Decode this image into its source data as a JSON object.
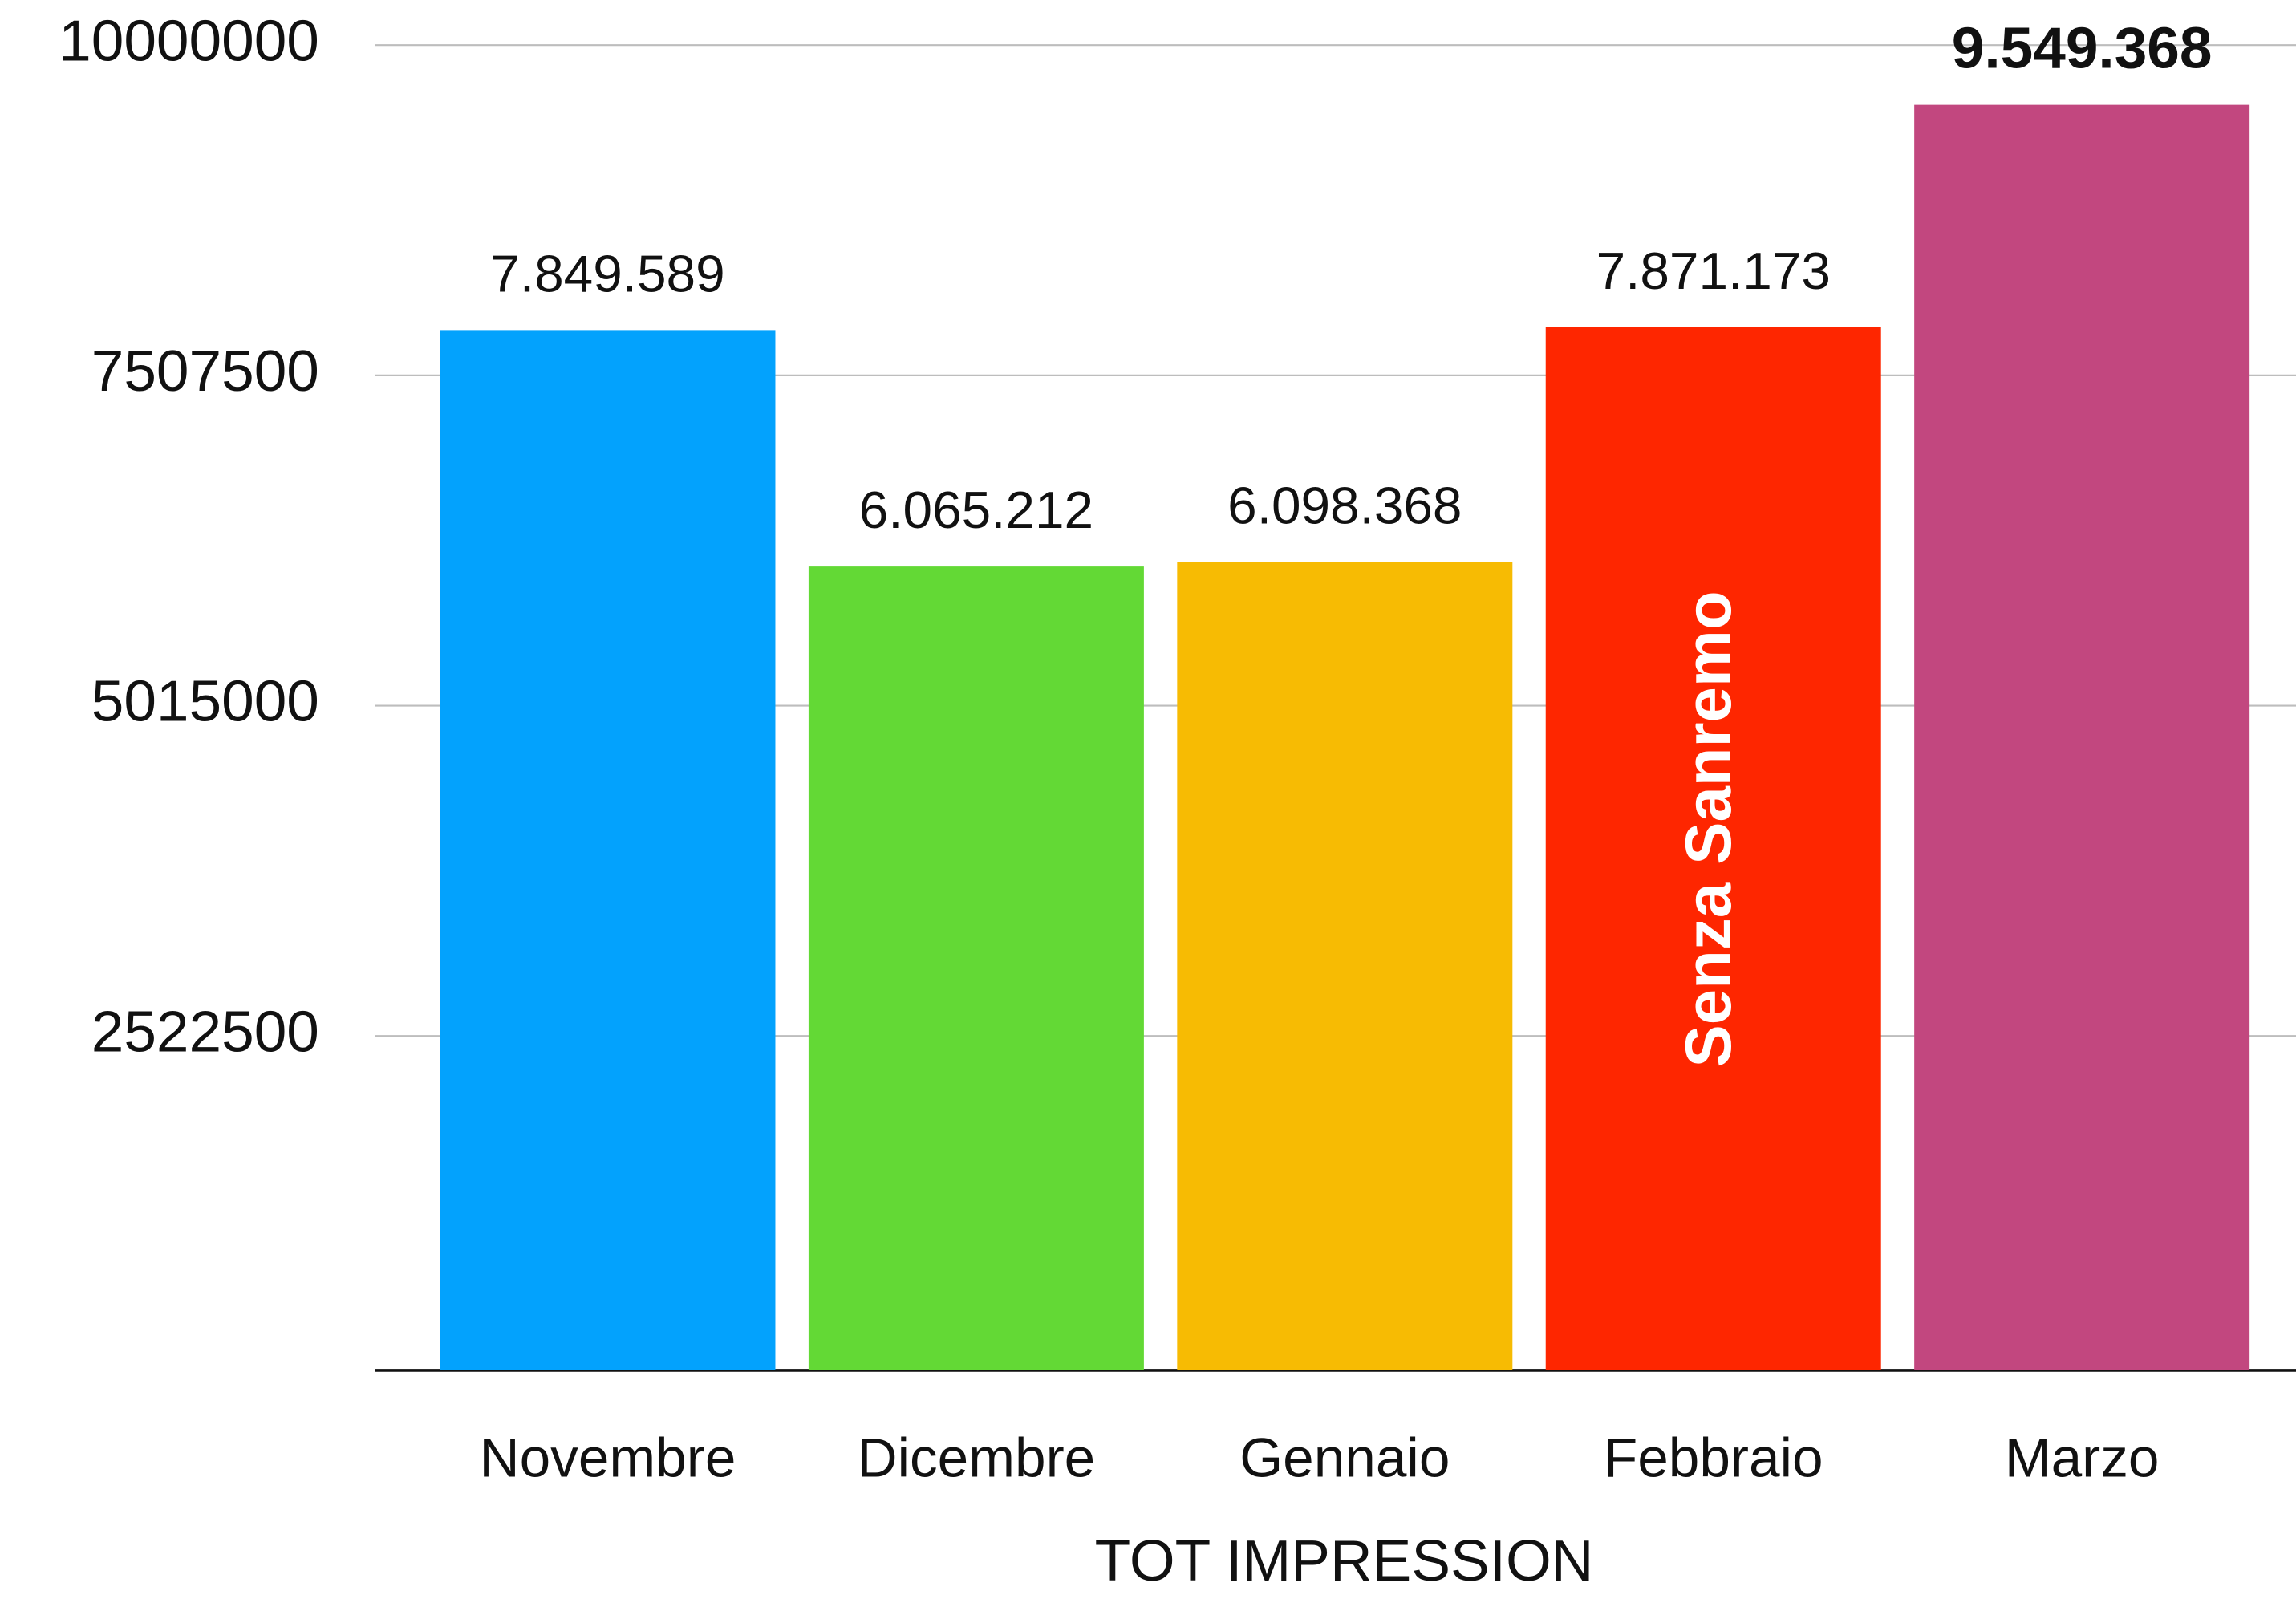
{
  "chart_data": {
    "type": "bar",
    "x_label": "TOT IMPRESSION",
    "categories": [
      "Novembre",
      "Dicembre",
      "Gennaio",
      "Febbraio",
      "Marzo"
    ],
    "values": [
      7849589,
      6065212,
      6098368,
      7871173,
      9549368
    ],
    "value_labels": [
      "7.849.589",
      "6.065.212",
      "6.098.368",
      "7.871.173",
      "9.549.368"
    ],
    "colors": [
      "#03a2fd",
      "#63d935",
      "#f7bb03",
      "#fe2600",
      "#c2477f"
    ],
    "annotation": "Senza Sanremo",
    "ylim": [
      0,
      10000000
    ],
    "yticks": [
      2522500,
      5015000,
      7507500,
      10000000
    ],
    "grid": true
  }
}
